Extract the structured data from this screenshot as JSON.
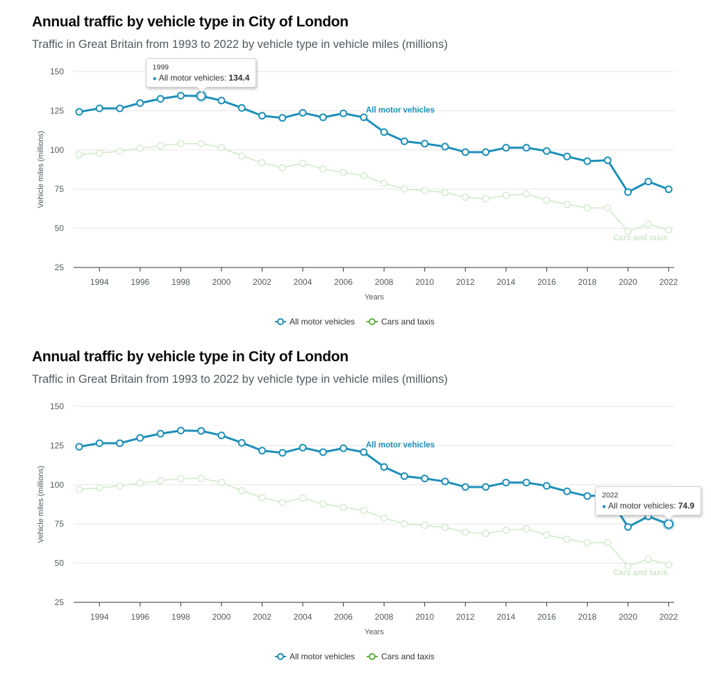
{
  "chart_data": [
    {
      "type": "line",
      "title": "Annual traffic by vehicle type in City of London",
      "subtitle": "Traffic in Great Britain from 1993 to 2022 by vehicle type in vehicle miles (millions)",
      "xlabel": "Years",
      "ylabel": "Vehicle miles (millions)",
      "ylim": [
        25,
        150
      ],
      "xlim": [
        1993,
        2022
      ],
      "yticks": [
        "25",
        "50",
        "75",
        "100",
        "125",
        "150"
      ],
      "xticks": [
        "1994",
        "1996",
        "1998",
        "2000",
        "2002",
        "2004",
        "2006",
        "2008",
        "2010",
        "2012",
        "2014",
        "2016",
        "2018",
        "2020",
        "2022"
      ],
      "grid": "horizontal",
      "legend_position": "bottom-center",
      "x": [
        1993,
        1994,
        1995,
        1996,
        1997,
        1998,
        1999,
        2000,
        2001,
        2002,
        2003,
        2004,
        2005,
        2006,
        2007,
        2008,
        2009,
        2010,
        2011,
        2012,
        2013,
        2014,
        2015,
        2016,
        2017,
        2018,
        2019,
        2020,
        2021,
        2022
      ],
      "series": [
        {
          "name": "All motor vehicles",
          "color": "#1d8fb8",
          "emphasis": "highlighted",
          "values": [
            124.3,
            126.5,
            126.5,
            129.9,
            132.6,
            134.6,
            134.4,
            131.5,
            126.8,
            121.8,
            120.4,
            123.7,
            120.8,
            123.3,
            120.8,
            111.4,
            105.5,
            104.0,
            102.1,
            98.6,
            98.6,
            101.4,
            101.4,
            99.3,
            95.8,
            92.8,
            93.4,
            73.1,
            79.8,
            74.9
          ]
        },
        {
          "name": "Cars and taxis",
          "color": "#cfe8c9",
          "emphasis": "faded",
          "values": [
            97.0,
            98.1,
            99.2,
            101.1,
            102.6,
            104.0,
            104.0,
            101.5,
            96.2,
            91.8,
            88.7,
            91.5,
            87.8,
            85.6,
            83.6,
            78.7,
            75.1,
            74.1,
            72.8,
            69.8,
            68.9,
            71.0,
            71.9,
            68.0,
            65.3,
            63.0,
            63.0,
            48.0,
            52.6,
            49.0
          ]
        }
      ],
      "series_labels": [
        "All motor vehicles",
        "Cars and taxis"
      ],
      "tooltip": {
        "year": "1999",
        "series": "All motor vehicles",
        "value": "134.4",
        "label_text": "All motor vehicles: "
      }
    },
    {
      "type": "line",
      "title": "Annual traffic by vehicle type in City of London",
      "subtitle": "Traffic in Great Britain from 1993 to 2022 by vehicle type in vehicle miles (millions)",
      "xlabel": "Years",
      "ylabel": "Vehicle miles (millions)",
      "ylim": [
        25,
        150
      ],
      "xlim": [
        1993,
        2022
      ],
      "yticks": [
        "25",
        "50",
        "75",
        "100",
        "125",
        "150"
      ],
      "xticks": [
        "1994",
        "1996",
        "1998",
        "2000",
        "2002",
        "2004",
        "2006",
        "2008",
        "2010",
        "2012",
        "2014",
        "2016",
        "2018",
        "2020",
        "2022"
      ],
      "grid": "horizontal",
      "legend_position": "bottom-center",
      "x": [
        1993,
        1994,
        1995,
        1996,
        1997,
        1998,
        1999,
        2000,
        2001,
        2002,
        2003,
        2004,
        2005,
        2006,
        2007,
        2008,
        2009,
        2010,
        2011,
        2012,
        2013,
        2014,
        2015,
        2016,
        2017,
        2018,
        2019,
        2020,
        2021,
        2022
      ],
      "series": [
        {
          "name": "All motor vehicles",
          "color": "#1d8fb8",
          "emphasis": "highlighted",
          "values": [
            124.3,
            126.5,
            126.5,
            129.9,
            132.6,
            134.6,
            134.4,
            131.5,
            126.8,
            121.8,
            120.4,
            123.7,
            120.8,
            123.3,
            120.8,
            111.4,
            105.5,
            104.0,
            102.1,
            98.6,
            98.6,
            101.4,
            101.4,
            99.3,
            95.8,
            92.8,
            93.4,
            73.1,
            79.8,
            74.9
          ]
        },
        {
          "name": "Cars and taxis",
          "color": "#cfe8c9",
          "emphasis": "faded",
          "values": [
            97.0,
            98.1,
            99.2,
            101.1,
            102.6,
            104.0,
            104.0,
            101.5,
            96.2,
            91.8,
            88.7,
            91.5,
            87.8,
            85.6,
            83.6,
            78.7,
            75.1,
            74.1,
            72.8,
            69.8,
            68.9,
            71.0,
            71.9,
            68.0,
            65.3,
            63.0,
            63.0,
            48.0,
            52.6,
            49.0
          ]
        }
      ],
      "series_labels": [
        "All motor vehicles",
        "Cars and taxis"
      ],
      "tooltip": {
        "year": "2022",
        "series": "All motor vehicles",
        "value": "74.9",
        "label_text": "All motor vehicles: "
      }
    }
  ],
  "legend": {
    "items": [
      {
        "label": "All motor vehicles",
        "color": "#1d8fb8",
        "icon": "line-circle-marker-icon"
      },
      {
        "label": "Cars and taxis",
        "color": "#5cae3b",
        "icon": "line-circle-marker-icon"
      }
    ]
  },
  "colors": {
    "primary_series": "#1d8fb8",
    "secondary_series_faded": "#cfe8c9",
    "legend_green": "#5cae3b",
    "grid": "#e6e6e6",
    "axis": "#333333",
    "title": "#0b0c0c",
    "subtitle": "#505a5f"
  }
}
